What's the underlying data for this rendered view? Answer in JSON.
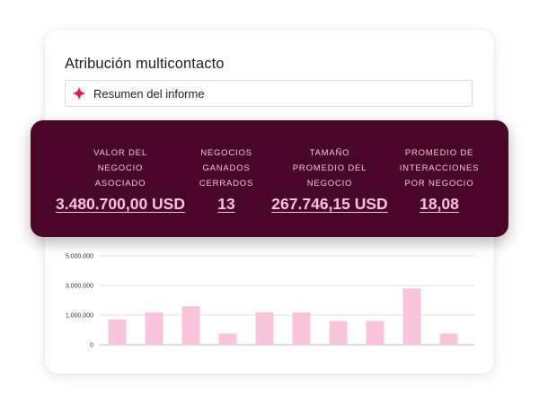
{
  "report": {
    "title": "Atribución multicontacto",
    "summary_label": "Resumen del informe"
  },
  "stats": [
    {
      "label": "VALOR DEL\nNEGOCIO\nASOCIADO",
      "value": "3.480.700,00 USD"
    },
    {
      "label": "NEGOCIOS\nGANADOS\nCERRADOS",
      "value": "13"
    },
    {
      "label": "TAMAÑO\nPROMEDIO DEL\nNEGOCIO",
      "value": "267.746,15 USD"
    },
    {
      "label": "PROMEDIO DE\nINTERACCIONES\nPOR NEGOCIO",
      "value": "18,08"
    }
  ],
  "colors": {
    "stats_bg": "#4a0628",
    "stats_text": "#ffc0dc",
    "bar": "#f9c3dc",
    "sparkle": "#e8175d"
  },
  "icons": {
    "summary": "sparkle-icon"
  },
  "chart_data": {
    "type": "bar",
    "categories": [
      "",
      "",
      "",
      "",
      "",
      "",
      "",
      "",
      "",
      ""
    ],
    "values": [
      850000,
      1180000,
      1600000,
      380000,
      1180000,
      1180000,
      800000,
      800000,
      2800000,
      380000
    ],
    "yticks": [
      0,
      1000000,
      3000000,
      5000000
    ],
    "ytick_labels": [
      "0",
      "1.000.000",
      "3.000.000",
      "5.000.000"
    ],
    "grid": true,
    "legend": "none"
  }
}
